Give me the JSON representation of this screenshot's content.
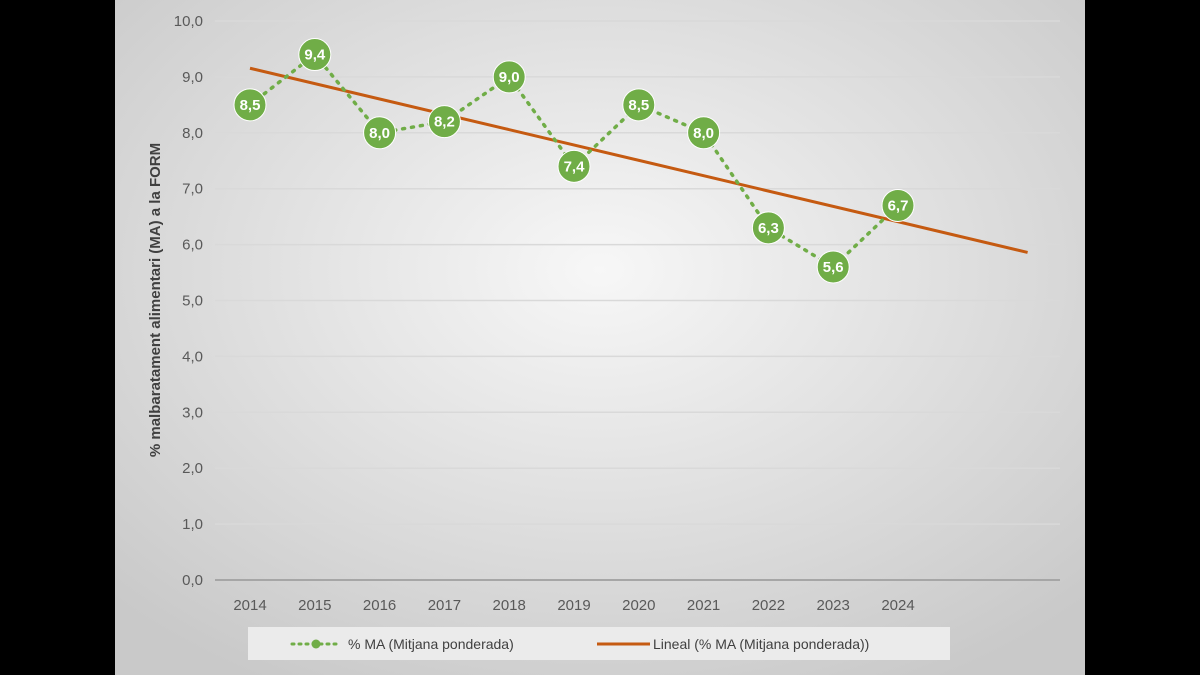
{
  "chart_data": {
    "type": "line",
    "title": "",
    "xlabel": "",
    "ylabel": "% malbaratament alimentari (MA) a la FORM",
    "categories": [
      "2014",
      "2015",
      "2016",
      "2017",
      "2018",
      "2019",
      "2020",
      "2021",
      "2022",
      "2023",
      "2024"
    ],
    "series": [
      {
        "name": "% MA (Mitjana ponderada)",
        "values": [
          8.5,
          9.4,
          8.0,
          8.2,
          9.0,
          7.4,
          8.5,
          8.0,
          6.3,
          5.6,
          6.7
        ],
        "color": "#70ad47",
        "style": "dotted-with-markers",
        "data_labels": [
          "8,5",
          "9,4",
          "8,0",
          "8,2",
          "9,0",
          "7,4",
          "8,5",
          "8,0",
          "6,3",
          "5,6",
          "6,7"
        ]
      }
    ],
    "trendline": {
      "name": "Lineal (% MA (Mitjana ponderada))",
      "type": "linear",
      "forward_periods": 2,
      "color": "#c55a11"
    },
    "ylim": [
      0,
      10
    ],
    "yticks": [
      "0,0",
      "1,0",
      "2,0",
      "3,0",
      "4,0",
      "5,0",
      "6,0",
      "7,0",
      "8,0",
      "9,0",
      "10,0"
    ],
    "grid": true,
    "legend_position": "bottom"
  }
}
